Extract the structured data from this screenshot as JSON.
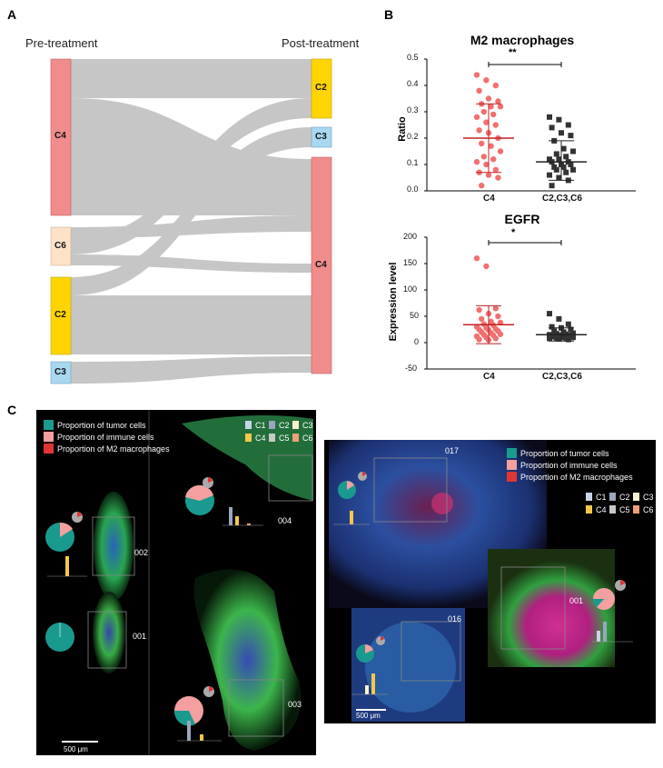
{
  "panels": {
    "a": "A",
    "b": "B",
    "c": "C"
  },
  "sankey": {
    "left_title": "Pre-treatment",
    "right_title": "Post-treatment",
    "left_nodes": [
      {
        "label": "C4",
        "color": "#f08c8c"
      },
      {
        "label": "C6",
        "color": "#fde2c8"
      },
      {
        "label": "C2",
        "color": "#ffd500"
      },
      {
        "label": "C3",
        "color": "#a8d8f0"
      }
    ],
    "right_nodes": [
      {
        "label": "C2",
        "color": "#ffd500"
      },
      {
        "label": "C3",
        "color": "#a8d8f0"
      },
      {
        "label": "C4",
        "color": "#f08c8c"
      }
    ],
    "flow_color": "#bdbdbd"
  },
  "m2": {
    "title": "M2 macrophages",
    "ylabel": "Ratio",
    "yticks": [
      "0.0",
      "0.1",
      "0.2",
      "0.3",
      "0.4",
      "0.5"
    ],
    "categories": [
      "C4",
      "C2,C3,C6"
    ],
    "significance": "**"
  },
  "egfr": {
    "title": "EGFR",
    "ylabel": "Expression level",
    "yticks": [
      "-50",
      "0",
      "50",
      "100",
      "150",
      "200"
    ],
    "categories": [
      "C4",
      "C2,C3,C6"
    ],
    "significance": "*"
  },
  "chart_data": [
    {
      "type": "scatter",
      "title": "M2 macrophages",
      "ylabel": "Ratio",
      "categories": [
        "C4",
        "C2,C3,C6"
      ],
      "ylim": [
        0,
        0.5
      ],
      "series": [
        {
          "values": [
            0.44,
            0.42,
            0.4,
            0.38,
            0.35,
            0.34,
            0.33,
            0.32,
            0.32,
            0.3,
            0.29,
            0.28,
            0.26,
            0.25,
            0.23,
            0.22,
            0.2,
            0.18,
            0.17,
            0.15,
            0.13,
            0.12,
            0.11,
            0.1,
            0.08,
            0.07,
            0.06,
            0.05,
            0.02
          ],
          "mean": 0.2,
          "sd_low": 0.07,
          "sd_high": 0.33,
          "color": "#f07070"
        },
        {
          "values": [
            0.28,
            0.27,
            0.25,
            0.24,
            0.22,
            0.21,
            0.19,
            0.16,
            0.15,
            0.14,
            0.13,
            0.12,
            0.12,
            0.11,
            0.11,
            0.1,
            0.1,
            0.09,
            0.09,
            0.08,
            0.08,
            0.07,
            0.06,
            0.05,
            0.04,
            0.02
          ],
          "mean": 0.11,
          "sd_low": 0.04,
          "sd_high": 0.19,
          "color": "#333333"
        }
      ]
    },
    {
      "type": "scatter",
      "title": "EGFR",
      "ylabel": "Expression level",
      "categories": [
        "C4",
        "C2,C3,C6"
      ],
      "ylim": [
        -50,
        200
      ],
      "series": [
        {
          "values": [
            160,
            145,
            65,
            62,
            55,
            50,
            45,
            40,
            38,
            35,
            33,
            30,
            28,
            26,
            25,
            24,
            22,
            20,
            18,
            16,
            15,
            14,
            12,
            10,
            8,
            6,
            5
          ],
          "mean": 34,
          "sd_low": -2,
          "sd_high": 70,
          "color": "#f07070"
        },
        {
          "values": [
            55,
            45,
            35,
            30,
            28,
            25,
            22,
            20,
            18,
            17,
            16,
            15,
            14,
            14,
            13,
            12,
            12,
            11,
            10,
            10,
            9,
            9,
            8,
            7,
            6
          ],
          "mean": 15,
          "sd_low": 3,
          "sd_high": 28,
          "color": "#333333"
        }
      ]
    }
  ],
  "panel_c": {
    "legend": {
      "tumor": "Proportion of tumor cells",
      "immune": "Proportion of immune cells",
      "m2": "Proportion of M2 macrophages",
      "colors": {
        "tumor": "#1a9a8f",
        "immune": "#f4a0a0",
        "m2": "#e03535"
      }
    },
    "cluster_legend": [
      "C1",
      "C2",
      "C3",
      "C4",
      "C5",
      "C6"
    ],
    "cluster_colors": [
      "#c7d3e8",
      "#9aa6bd",
      "#f7f3d0",
      "#f5c84a",
      "#c9c9c9",
      "#f0a078"
    ],
    "left_labels": [
      "002",
      "001",
      "004",
      "003"
    ],
    "right_labels": [
      "017",
      "016",
      "001"
    ],
    "scalebar": "500 μm"
  }
}
